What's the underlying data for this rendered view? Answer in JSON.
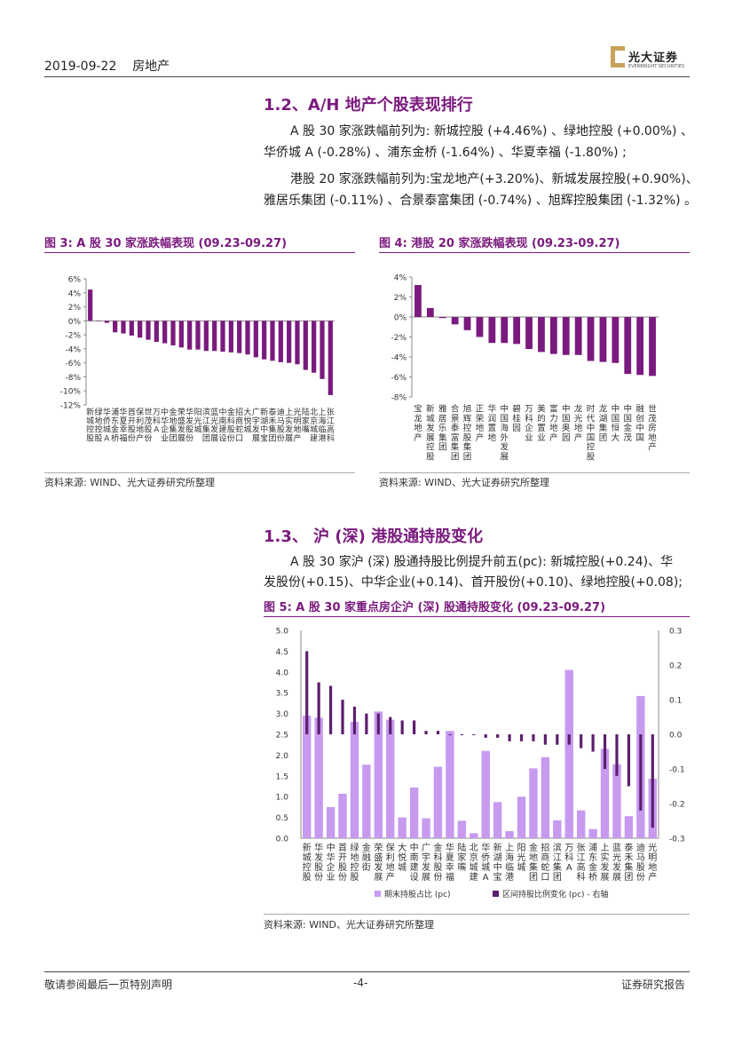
{
  "header": {
    "date": "2019-09-22",
    "category": "房地产",
    "logo_text": "光大证券",
    "logo_en": "EVERBRIGHT SECURITIES"
  },
  "section_1_2": {
    "title": "1.2、A/H 地产个股表现排行",
    "para1_line1": "A 股 30 家涨跌幅前列为: 新城控股 (+4.46%) 、绿地控股 (+0.00%) 、",
    "para1_line2": "华侨城 A (-0.28%) 、浦东金桥 (-1.64%) 、华夏幸福 (-1.80%) ;",
    "para2_line1": "港股 20 家涨跌幅前列为:宝龙地产(+3.20%)、新城发展控股(+0.90%)、",
    "para2_line2": "雅居乐集团 (-0.11%) 、合景泰富集团 (-0.74%) 、旭辉控股集团 (-1.32%) 。"
  },
  "fig3": {
    "caption": "图 3: A 股 30 家涨跌幅表现 (09.23-09.27)",
    "source": "资料来源: WIND、光大证券研究所整理"
  },
  "fig4": {
    "caption": "图 4: 港股 20 家涨跌幅表现 (09.23-09.27)",
    "source": "资料来源: WIND、光大证券研究所整理"
  },
  "section_1_3": {
    "title": "1.3、  沪 (深) 港股通持股变化",
    "para_line1": "A 股 30 家沪 (深) 股通持股比例提升前五(pc): 新城控股(+0.24)、华",
    "para_line2": "发股份(+0.15)、中华企业(+0.14)、首开股份(+0.10)、绿地控股(+0.08);"
  },
  "fig5": {
    "caption": "图 5: A 股 30 家重点房企沪 (深) 股通持股变化 (09.23-09.27)",
    "source": "资料来源: WIND、光大证券研究所整理"
  },
  "footer": {
    "left": "敬请参阅最后一页特别声明",
    "center": "-4-",
    "right": "证券研究报告"
  },
  "chart_data": [
    {
      "type": "bar",
      "title": "A 股 30 家涨跌幅表现 (09.23-09.27)",
      "color": "#7a1a7e",
      "ylim": [
        -12,
        6
      ],
      "yticks": [
        "6%",
        "4%",
        "2%",
        "0%",
        "-2%",
        "-4%",
        "-6%",
        "-8%",
        "-10%",
        "-12%"
      ],
      "categories": [
        "新城控股",
        "绿地控股",
        "华侨城A",
        "浦东金桥",
        "华夏幸福",
        "首开股份",
        "保利地产",
        "世茂股份",
        "万科A",
        "中华企业",
        "金地集团",
        "荣盛发展",
        "华发股份",
        "阳光城",
        "滨江集团",
        "蓝光发展",
        "中南建设",
        "金科股份",
        "招商蛇口",
        "大悦城",
        "广宇发展",
        "新湖中宝",
        "泰禾集团",
        "迪马股份",
        "上实发展",
        "光明地产",
        "陆家嘴",
        "北京城建",
        "上海临港",
        "张江高科"
      ],
      "values": [
        4.46,
        0.0,
        -0.28,
        -1.64,
        -1.8,
        -2.1,
        -2.4,
        -2.7,
        -3.0,
        -3.2,
        -3.5,
        -3.8,
        -4.1,
        -4.1,
        -4.3,
        -4.3,
        -4.4,
        -4.5,
        -4.6,
        -4.8,
        -5.2,
        -5.5,
        -5.7,
        -5.9,
        -6.0,
        -6.2,
        -7.0,
        -7.4,
        -8.3,
        -10.6
      ]
    },
    {
      "type": "bar",
      "title": "港股 20 家涨跌幅表现 (09.23-09.27)",
      "color": "#7a1a7e",
      "ylim": [
        -8,
        4
      ],
      "yticks": [
        "4%",
        "2%",
        "0%",
        "-2%",
        "-4%",
        "-6%",
        "-8%"
      ],
      "categories": [
        "宝龙地产",
        "新城发展控股",
        "雅居乐集团",
        "合景泰富集团",
        "旭辉控股集团",
        "正荣地产",
        "华润置地",
        "中国海外发展",
        "碧桂园",
        "万科企业",
        "美的置业",
        "富力地产",
        "中国奥园",
        "龙光地产",
        "时代中国控股",
        "龙湖集团",
        "中国恒大",
        "中国金茂",
        "融创中国",
        "世茂房地产"
      ],
      "values": [
        3.2,
        0.9,
        -0.11,
        -0.74,
        -1.32,
        -2.0,
        -2.6,
        -2.6,
        -2.7,
        -3.2,
        -3.5,
        -3.7,
        -3.8,
        -3.8,
        -4.4,
        -4.5,
        -4.6,
        -5.7,
        -5.8,
        -5.9
      ]
    },
    {
      "type": "bar",
      "title": "A 股 30 家重点房企沪 (深) 股通持股变化 (09.23-09.27)",
      "categories": [
        "新城控股",
        "华发股份",
        "中华企业",
        "首开股份",
        "绿地控股",
        "金融街",
        "荣盛发展",
        "保利地产",
        "大悦城",
        "中南建设",
        "广宇发展",
        "金科股份",
        "华夏幸福",
        "陆家嘴",
        "北京城建",
        "华侨城A",
        "新湖中宝",
        "上海临港",
        "阳光城",
        "金地集团",
        "招商蛇口",
        "滨江集团",
        "万科A",
        "张江高科",
        "浦东金桥",
        "上实发展",
        "蓝光发展",
        "泰禾集团",
        "迪马股份",
        "光明地产"
      ],
      "ylim_left": [
        0,
        5
      ],
      "ylim_right": [
        -0.3,
        0.3
      ],
      "yticks_left": [
        "5.0",
        "4.5",
        "4.0",
        "3.5",
        "3.0",
        "2.5",
        "2.0",
        "1.5",
        "1.0",
        "0.5",
        "0.0"
      ],
      "yticks_right": [
        "0.3",
        "0.2",
        "0.1",
        "0.0",
        "-0.1",
        "-0.2",
        "-0.3"
      ],
      "series": [
        {
          "name": "期末持股占比 (pc)",
          "axis": "left",
          "color": "#c79af0",
          "values": [
            2.95,
            2.9,
            0.75,
            1.07,
            2.8,
            1.77,
            3.05,
            2.85,
            0.5,
            1.22,
            0.48,
            1.72,
            2.58,
            0.42,
            0.12,
            2.1,
            0.87,
            0.17,
            1.0,
            1.68,
            1.95,
            0.43,
            4.05,
            0.67,
            0.22,
            2.15,
            1.78,
            0.53,
            3.42,
            1.43
          ]
        },
        {
          "name": "区间持股比例变化 (pc) - 右轴",
          "axis": "right",
          "color": "#5b1f6e",
          "values": [
            0.24,
            0.15,
            0.14,
            0.1,
            0.08,
            0.06,
            0.06,
            0.05,
            0.04,
            0.04,
            0.01,
            0.01,
            0.0,
            0.0,
            0.0,
            -0.01,
            -0.01,
            -0.02,
            -0.02,
            -0.02,
            -0.03,
            -0.03,
            -0.03,
            -0.04,
            -0.05,
            -0.1,
            -0.12,
            -0.15,
            -0.22,
            -0.27
          ]
        }
      ]
    }
  ]
}
